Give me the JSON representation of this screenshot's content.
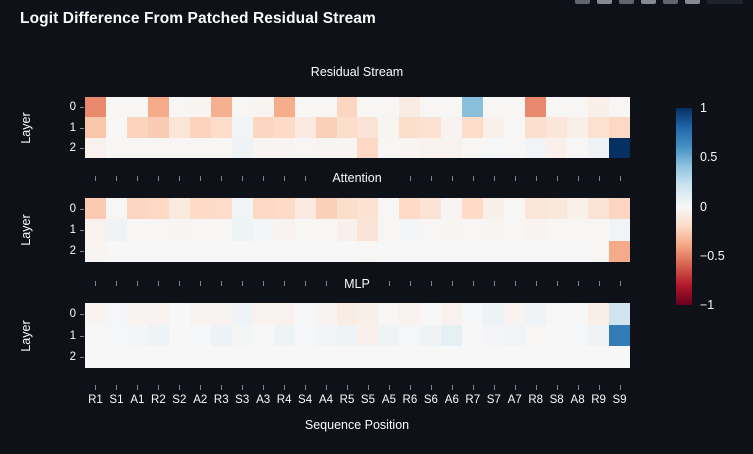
{
  "page": {
    "title": "Logit Difference From Patched Residual Stream"
  },
  "toolbar": {
    "icons": [
      "camera-icon",
      "zoom-icon",
      "pan-icon",
      "zoom-in-icon",
      "zoom-out-icon",
      "autoscale-icon",
      "reset-axes-icon"
    ]
  },
  "chart_data": {
    "type": "heatmap",
    "title": "Logit Difference From Patched Residual Stream",
    "xlabel": "Sequence Position",
    "ylabel": "Layer",
    "colorscale": "RdBu",
    "zmin": -1,
    "zmax": 1,
    "legend_position": "right-colorbar",
    "colorbar_ticks": [
      "1",
      "0.5",
      "0",
      "−0.5",
      "−1"
    ],
    "categories": [
      "R1",
      "S1",
      "A1",
      "R2",
      "S2",
      "A2",
      "R3",
      "S3",
      "A3",
      "R4",
      "S4",
      "A4",
      "R5",
      "S5",
      "A5",
      "R6",
      "S6",
      "A6",
      "R7",
      "S7",
      "A7",
      "R8",
      "S8",
      "A8",
      "R9",
      "S9"
    ],
    "layers": [
      "0",
      "1",
      "2"
    ],
    "subplots": [
      {
        "name": "Residual Stream",
        "values": [
          [
            -0.48,
            -0.01,
            -0.01,
            -0.38,
            -0.01,
            -0.02,
            -0.36,
            -0.01,
            -0.02,
            -0.37,
            -0.01,
            -0.01,
            -0.22,
            -0.01,
            -0.01,
            -0.08,
            -0.01,
            -0.01,
            0.42,
            -0.01,
            -0.01,
            -0.48,
            -0.01,
            -0.01,
            -0.06,
            -0.01
          ],
          [
            -0.28,
            -0.01,
            -0.23,
            -0.26,
            -0.13,
            -0.23,
            -0.19,
            0.03,
            -0.22,
            -0.2,
            -0.09,
            -0.24,
            -0.18,
            -0.14,
            -0.02,
            -0.18,
            -0.15,
            -0.03,
            -0.19,
            -0.05,
            -0.01,
            -0.17,
            -0.12,
            -0.06,
            -0.16,
            -0.21
          ],
          [
            -0.04,
            -0.01,
            -0.01,
            -0.01,
            -0.01,
            -0.01,
            -0.01,
            0.04,
            -0.02,
            -0.02,
            -0.01,
            -0.02,
            -0.02,
            -0.21,
            -0.01,
            -0.02,
            -0.04,
            -0.04,
            -0.01,
            0.01,
            -0.01,
            0.03,
            -0.05,
            -0.01,
            0.04,
            1.0
          ]
        ]
      },
      {
        "name": "Attention",
        "values": [
          [
            -0.26,
            -0.01,
            -0.22,
            -0.21,
            -0.1,
            -0.2,
            -0.19,
            0.03,
            -0.21,
            -0.2,
            -0.09,
            -0.24,
            -0.18,
            -0.15,
            -0.01,
            -0.2,
            -0.14,
            -0.02,
            -0.2,
            -0.06,
            -0.01,
            -0.13,
            -0.11,
            -0.05,
            -0.14,
            -0.22
          ],
          [
            -0.04,
            0.04,
            -0.01,
            -0.01,
            -0.02,
            -0.01,
            -0.01,
            0.05,
            0.02,
            -0.03,
            -0.01,
            -0.01,
            -0.05,
            -0.14,
            -0.01,
            0.02,
            -0.01,
            -0.02,
            -0.01,
            -0.02,
            -0.01,
            -0.03,
            -0.01,
            -0.01,
            -0.01,
            0.03
          ],
          [
            -0.02,
            0.0,
            0.0,
            0.0,
            0.0,
            0.0,
            0.0,
            0.0,
            0.0,
            0.0,
            0.0,
            0.0,
            0.0,
            -0.01,
            0.0,
            0.0,
            0.0,
            0.0,
            0.0,
            0.0,
            0.0,
            0.0,
            0.0,
            0.0,
            -0.01,
            -0.38
          ]
        ]
      },
      {
        "name": "MLP",
        "values": [
          [
            -0.03,
            0.01,
            -0.03,
            -0.03,
            0.0,
            -0.03,
            -0.03,
            0.04,
            -0.04,
            -0.04,
            0.01,
            -0.03,
            -0.08,
            -0.06,
            -0.01,
            -0.04,
            0.0,
            -0.04,
            0.01,
            0.06,
            -0.03,
            0.04,
            -0.01,
            0.0,
            -0.06,
            0.2
          ],
          [
            0.0,
            0.01,
            0.02,
            0.05,
            0.0,
            0.01,
            0.06,
            0.02,
            0.0,
            0.05,
            0.01,
            0.03,
            0.05,
            -0.05,
            0.04,
            0.01,
            0.05,
            0.09,
            0.0,
            0.02,
            0.03,
            -0.01,
            0.0,
            0.01,
            0.04,
            0.7
          ],
          [
            0.0,
            0.0,
            0.0,
            0.0,
            0.0,
            0.0,
            0.0,
            0.0,
            0.0,
            0.0,
            0.0,
            0.0,
            0.0,
            0.0,
            0.0,
            0.0,
            0.0,
            0.0,
            0.0,
            0.0,
            0.0,
            0.0,
            0.0,
            0.0,
            0.0,
            0.0
          ]
        ]
      }
    ]
  }
}
